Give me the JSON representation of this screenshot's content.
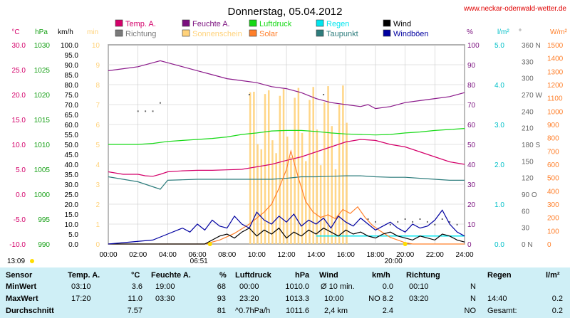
{
  "header": {
    "title": "Donnerstag, 05.04.2012",
    "url": "www.neckar-odenwald-wetter.de"
  },
  "legend": [
    {
      "label": "Temp. A.",
      "color": "#d4006a"
    },
    {
      "label": "Feuchte A.",
      "color": "#7a0f7e"
    },
    {
      "label": "Luftdruck",
      "color": "#16d916"
    },
    {
      "label": "Regen",
      "color": "#00e5ee"
    },
    {
      "label": "Wind",
      "color": "#000000"
    },
    {
      "label": "Richtung",
      "color": "#7a7a7a"
    },
    {
      "label": "Sonnenschein",
      "color": "#ffd27a"
    },
    {
      "label": "Solar",
      "color": "#ff7f2a"
    },
    {
      "label": "Taupunkt",
      "color": "#2e7d7d"
    },
    {
      "label": "Windböen",
      "color": "#0000a0"
    }
  ],
  "axis_units": {
    "temp": "°C",
    "pressure": "hPa",
    "wind": "km/h",
    "sun": "min",
    "humidity": "%",
    "rain": "l/m²",
    "direction": "°",
    "solar": "W/m²"
  },
  "time_markers": {
    "sunrise": "06:51",
    "sunset": "20:00",
    "left": "13:09"
  },
  "chart_data": {
    "type": "line",
    "x_ticks": [
      "00:00",
      "02:00",
      "04:00",
      "06:00",
      "08:00",
      "10:00",
      "12:00",
      "14:00",
      "16:00",
      "18:00",
      "20:00",
      "22:00",
      "24:00"
    ],
    "axes": {
      "temp": {
        "min": -10,
        "max": 30,
        "ticks": [
          "30.0",
          "25.0",
          "20.0",
          "15.0",
          "10.0",
          "5.0",
          "0.0",
          "-5.0",
          "-10.0"
        ]
      },
      "pressure": {
        "min": 990,
        "max": 1030,
        "ticks": [
          "1030",
          "1025",
          "1020",
          "1015",
          "1010",
          "1005",
          "1000",
          "995",
          "990"
        ]
      },
      "wind": {
        "min": 0,
        "max": 100,
        "ticks": [
          "100.0",
          "95.0",
          "90.0",
          "85.0",
          "80.0",
          "75.0",
          "70.0",
          "65.0",
          "60.0",
          "55.0",
          "50.0",
          "45.0",
          "40.0",
          "35.0",
          "30.0",
          "25.0",
          "20.0",
          "15.0",
          "10.0",
          "5.0",
          "0.0"
        ]
      },
      "sun": {
        "min": 0,
        "max": 10,
        "ticks": [
          "10",
          "9",
          "8",
          "7",
          "6",
          "5",
          "4",
          "3",
          "2",
          "1",
          "0"
        ]
      },
      "humidity": {
        "min": 0,
        "max": 100,
        "ticks": [
          "100",
          "90",
          "80",
          "70",
          "60",
          "50",
          "40",
          "30",
          "20",
          "10",
          "0"
        ]
      },
      "rain": {
        "min": 0,
        "max": 5,
        "ticks": [
          "5.0",
          "4.0",
          "3.0",
          "2.0",
          "1.0",
          "0.0"
        ]
      },
      "direction": {
        "min": 0,
        "max": 360,
        "ticks": [
          "360 N",
          "330",
          "300",
          "270 W",
          "240",
          "210",
          "180 S",
          "150",
          "120",
          "90 O",
          "60",
          "30",
          "0 N"
        ]
      },
      "solar": {
        "min": 0,
        "max": 1500,
        "ticks": [
          "1500",
          "1400",
          "1300",
          "1200",
          "1100",
          "1000",
          "900",
          "800",
          "700",
          "600",
          "500",
          "400",
          "300",
          "200",
          "100",
          "0"
        ]
      }
    },
    "series": [
      {
        "name": "Feuchte A.",
        "axis": "humidity",
        "color": "#8b1a8b",
        "x": [
          0,
          1,
          2,
          3,
          3.5,
          4,
          5,
          6,
          7,
          8,
          9,
          10,
          11,
          12,
          13,
          14,
          15,
          16,
          17,
          17.5,
          18,
          19,
          20,
          21,
          22,
          23,
          24
        ],
        "y": [
          87,
          88,
          89,
          91,
          92,
          91,
          89,
          87,
          85,
          83,
          82,
          81,
          79,
          78,
          76,
          73,
          71,
          70,
          69,
          70,
          68,
          69,
          71,
          72,
          73,
          74,
          76
        ]
      },
      {
        "name": "Temp. A.",
        "axis": "temp",
        "color": "#d4006a",
        "x": [
          0,
          1,
          2,
          2.5,
          3,
          3.5,
          4,
          5,
          6,
          7,
          8,
          9,
          10,
          11,
          12,
          13,
          14,
          15,
          16,
          17,
          18,
          19,
          20,
          21,
          22,
          23,
          24
        ],
        "y": [
          4.5,
          4,
          4,
          3.7,
          3.6,
          4,
          4.5,
          4.7,
          4.8,
          4.8,
          4.9,
          5,
          5.5,
          6,
          6.8,
          7.5,
          8.5,
          9.5,
          10.5,
          11,
          10.8,
          10,
          9.5,
          8.5,
          7.5,
          6.5,
          6
        ]
      },
      {
        "name": "Luftdruck",
        "axis": "pressure",
        "color": "#16d916",
        "x": [
          0,
          1,
          2,
          3,
          4,
          5,
          6,
          7,
          8,
          9,
          10,
          11,
          12,
          13,
          14,
          15,
          16,
          17,
          18,
          19,
          20,
          21,
          22,
          23,
          24
        ],
        "y": [
          1010,
          1010,
          1010,
          1010.2,
          1010.6,
          1010.8,
          1011,
          1011.2,
          1011.5,
          1012,
          1012.3,
          1012.7,
          1012.8,
          1012.8,
          1012.6,
          1012.3,
          1012.1,
          1012,
          1011.9,
          1012,
          1012.3,
          1012.5,
          1012.8,
          1013,
          1013.2
        ]
      },
      {
        "name": "Taupunkt",
        "axis": "temp",
        "color": "#2e7d7d",
        "x": [
          0,
          1,
          2,
          3,
          3.5,
          4,
          5,
          6,
          7,
          8,
          9,
          10,
          11,
          12,
          13,
          14,
          15,
          16,
          17,
          18,
          19,
          20,
          21,
          22,
          23,
          24
        ],
        "y": [
          3.5,
          3,
          2.5,
          1.5,
          1,
          2.8,
          2.9,
          3,
          3,
          3,
          3,
          3,
          3,
          3.2,
          3.5,
          3.5,
          3.6,
          3.7,
          3.7,
          3.5,
          3.4,
          3.4,
          3.2,
          3,
          2.8,
          2.8
        ]
      },
      {
        "name": "Solar",
        "axis": "solar",
        "color": "#ff7f2a",
        "x": [
          0,
          6.5,
          7.5,
          8.5,
          9.5,
          10.5,
          11,
          11.5,
          12,
          12.3,
          12.8,
          13.3,
          13.8,
          14.3,
          14.8,
          15.3,
          15.8,
          16.3,
          16.8,
          17.3,
          17.8,
          18.3,
          19,
          20,
          20.5,
          24
        ],
        "y": [
          0,
          0,
          30,
          80,
          150,
          240,
          300,
          420,
          560,
          700,
          500,
          320,
          240,
          200,
          220,
          190,
          260,
          230,
          280,
          200,
          140,
          100,
          50,
          10,
          0,
          0
        ]
      },
      {
        "name": "Wind",
        "axis": "wind",
        "color": "#000000",
        "x": [
          0,
          6.5,
          7,
          7.5,
          8,
          8.5,
          9,
          9.5,
          10,
          10.5,
          11,
          11.5,
          12,
          12.5,
          13,
          13.5,
          14,
          14.5,
          15,
          15.5,
          16,
          16.5,
          17,
          17.5,
          18,
          18.5,
          19,
          19.5,
          20,
          20.5,
          21,
          21.5,
          22,
          22.5,
          23,
          23.5,
          24
        ],
        "y": [
          0,
          0,
          2,
          4,
          5,
          3,
          6,
          8,
          4,
          7,
          5,
          8,
          3,
          6,
          4,
          7,
          5,
          8,
          6,
          4,
          7,
          5,
          6,
          4,
          3,
          5,
          6,
          4,
          3,
          2,
          4,
          3,
          2,
          5,
          4,
          2,
          1
        ]
      },
      {
        "name": "Windböen",
        "axis": "wind",
        "color": "#0000a0",
        "x": [
          0,
          3,
          4,
          5,
          5.5,
          6,
          6.5,
          7,
          7.5,
          8,
          8.5,
          9,
          9.5,
          10,
          10.5,
          11,
          11.5,
          12,
          12.5,
          13,
          13.5,
          14,
          14.5,
          15,
          15.5,
          16,
          16.5,
          17,
          17.5,
          18,
          18.5,
          19,
          19.5,
          20,
          20.5,
          21,
          21.5,
          22,
          22.5,
          23,
          23.5,
          24
        ],
        "y": [
          0,
          2,
          5,
          8,
          6,
          10,
          7,
          12,
          9,
          8,
          14,
          10,
          8,
          16,
          12,
          10,
          14,
          11,
          15,
          9,
          12,
          10,
          13,
          8,
          14,
          11,
          9,
          13,
          10,
          7,
          9,
          11,
          8,
          6,
          10,
          8,
          9,
          12,
          17,
          10,
          6,
          4
        ]
      }
    ],
    "direction_points": {
      "x": [
        2,
        2.5,
        3,
        3.5,
        9.5,
        14.5,
        17.5,
        18,
        19,
        19.5,
        20,
        20.5,
        21,
        21.5,
        22,
        22.5,
        23,
        23.5
      ],
      "y": [
        240,
        240,
        240,
        255,
        270,
        270,
        45,
        40,
        35,
        40,
        45,
        40,
        45,
        40,
        35,
        45,
        40,
        35
      ]
    },
    "rain_series": {
      "x": [
        14,
        24
      ],
      "y": [
        0.2,
        0.2
      ]
    }
  },
  "table": {
    "headers": {
      "sensor": "Sensor",
      "temp": "Temp. A.",
      "temp_unit": "°C",
      "hum": "Feuchte A.",
      "hum_unit": "%",
      "press": "Luftdruck",
      "press_unit": "hPa",
      "wind": "Wind",
      "wind_unit": "km/h",
      "dir": "Richtung",
      "rain": "Regen",
      "rain_unit": "l/m²"
    },
    "rows": [
      {
        "label": "MinWert",
        "temp_time": "03:10",
        "temp_val": "3.6",
        "hum_time": "19:00",
        "hum_val": "68",
        "press_time": "00:00",
        "press_val": "1010.0",
        "wind_time": "Ø 10 min.",
        "wind_val": "0.0",
        "dir_time": "00:10",
        "dir_val": "N",
        "rain_time": "",
        "rain_val": ""
      },
      {
        "label": "MaxWert",
        "temp_time": "17:20",
        "temp_val": "11.0",
        "hum_time": "03:30",
        "hum_val": "93",
        "press_time": "23:20",
        "press_val": "1013.3",
        "wind_time": "10:00",
        "wind_val": "NO 8.2",
        "dir_time": "03:20",
        "dir_val": "N",
        "rain_time": "14:40",
        "rain_val": "0.2"
      },
      {
        "label": "Durchschnitt",
        "temp_time": "",
        "temp_val": "7.57",
        "hum_time": "",
        "hum_val": "81",
        "press_time": "^0.7hPa/h",
        "press_val": "1011.6",
        "wind_time": "2,4 km",
        "wind_val": "2.4",
        "dir_time": "",
        "dir_val": "NO",
        "rain_time": "Gesamt:",
        "rain_val": "0.2"
      }
    ]
  }
}
